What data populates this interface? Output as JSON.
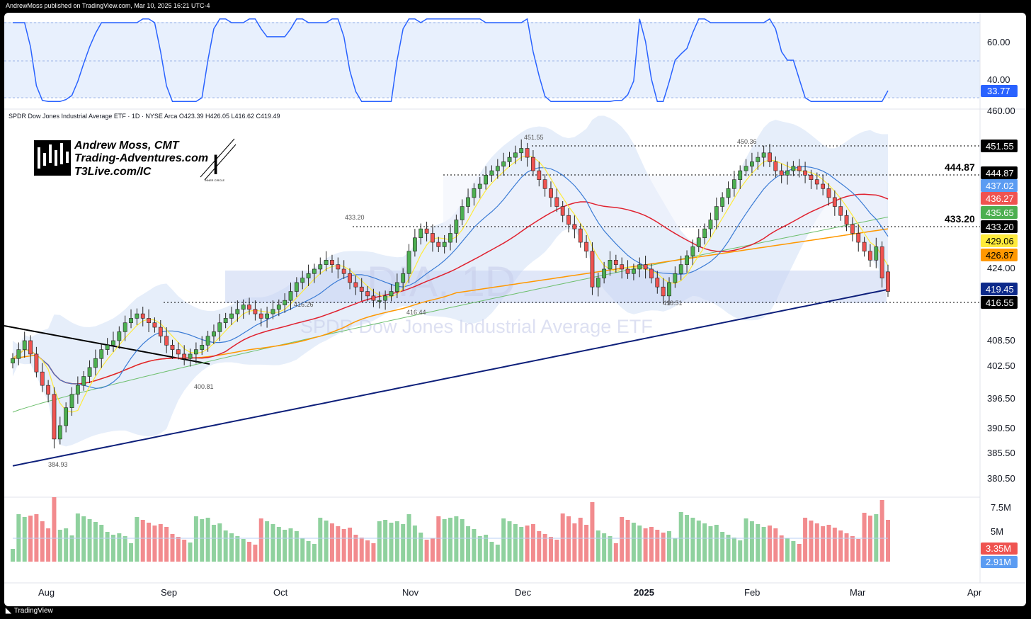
{
  "header": {
    "published_by": "AndrewMoss published on TradingView.com, Mar 10, 2025 16:21 UTC-4"
  },
  "footer": {
    "brand": "TradingView",
    "logo_glyph": "tradingview-logo-icon"
  },
  "symbol_line": "SPDR Dow Jones Industrial Average ETF · 1D · NYSE Arca  O423.39  H426.05  L416.62  C419.49",
  "watermark": {
    "ticker": "DIA, 1D",
    "name": "SPDR Dow Jones Industrial Average ETF"
  },
  "branding": {
    "line1": "Andrew Moss, CMT",
    "line2": "Trading-Adventures.com",
    "line3": "T3Live.com/IC",
    "inner_circle_caption": "INNER CIRCLE",
    "inner_circle_letter": "I"
  },
  "price_axis": {
    "ticks": [
      "460.00",
      "424.00",
      "408.50",
      "402.50",
      "396.50",
      "390.50",
      "385.50",
      "380.50"
    ],
    "tags": [
      {
        "label": "451.55",
        "bg": "#000000",
        "fg": "#ffffff",
        "value": 451.55
      },
      {
        "label": "444.87",
        "bg": "#000000",
        "fg": "#ffffff",
        "value": 444.87
      },
      {
        "label": "437.02",
        "bg": "#5b9cf2",
        "fg": "#ffffff",
        "value": 437.02
      },
      {
        "label": "436.27",
        "bg": "#ef5350",
        "fg": "#ffffff",
        "value": 436.27
      },
      {
        "label": "435.65",
        "bg": "#4caf50",
        "fg": "#ffffff",
        "value": 435.65
      },
      {
        "label": "433.20",
        "bg": "#000000",
        "fg": "#ffffff",
        "value": 433.2
      },
      {
        "label": "429.06",
        "bg": "#ffeb3b",
        "fg": "#000000",
        "value": 429.06
      },
      {
        "label": "426.87",
        "bg": "#ff9800",
        "fg": "#000000",
        "value": 426.87
      },
      {
        "label": "419.45",
        "bg": "#0d2a8a",
        "fg": "#ffffff",
        "value": 419.45
      },
      {
        "label": "416.55",
        "bg": "#000000",
        "fg": "#ffffff",
        "value": 416.55
      }
    ],
    "level_labels": [
      "444.87",
      "433.20"
    ]
  },
  "rsi_axis": {
    "ticks": [
      "60.00",
      "40.00"
    ],
    "current": "33.77"
  },
  "volume_axis": {
    "ticks": [
      "7.5M",
      "5M"
    ],
    "tags": [
      {
        "label": "3.35M",
        "bg": "#ef5350"
      },
      {
        "label": "2.91M",
        "bg": "#5b9cf2"
      }
    ]
  },
  "time_axis": {
    "labels": [
      "Aug",
      "Sep",
      "Oct",
      "Nov",
      "Dec",
      "2025",
      "Feb",
      "Mar",
      "Apr"
    ]
  },
  "price_annotations": [
    "451.55",
    "450.36",
    "433.20",
    "416.26",
    "416.44",
    "418.51",
    "400.81",
    "384.93"
  ],
  "colors": {
    "up": "#4caf50",
    "down": "#ef5350",
    "sma20": "#ffeb3b",
    "ema": "#3a7bd5",
    "sma50": "#e0212f",
    "sma100": "#6dbf6d",
    "sma150": "#ff9800",
    "sma200": "#0d1f7a",
    "band": "#e3edfb",
    "rsi": "#2962ff"
  },
  "chart_data": {
    "type": "candlestick",
    "title": "SPDR Dow Jones Industrial Average ETF · 1D · NYSE Arca",
    "ohlc_last": {
      "open": 423.39,
      "high": 426.05,
      "low": 416.62,
      "close": 419.49
    },
    "x": [
      "Aug",
      "Sep",
      "Oct",
      "Nov",
      "Dec",
      "2025",
      "Feb",
      "Mar",
      "Apr"
    ],
    "horizontal_levels": [
      451.55,
      444.87,
      433.2,
      416.55
    ],
    "moving_average_last_values": {
      "sma20_yellow": 429.06,
      "ema_blue": 437.02,
      "sma50_red": 436.27,
      "sma100_green": 435.65,
      "sma150_orange": 426.87,
      "sma200_navy": 419.45
    },
    "closes_approx": [
      404,
      406,
      408,
      405,
      401,
      398,
      396,
      386,
      389,
      393,
      396,
      398,
      400,
      402,
      404,
      406,
      407,
      408,
      410,
      412,
      413,
      414,
      413,
      412,
      411,
      409,
      407,
      406,
      405,
      404,
      405,
      406,
      407,
      409,
      410,
      412,
      413,
      414,
      415,
      416,
      415,
      414,
      413,
      414,
      415,
      416,
      417,
      419,
      421,
      422,
      423,
      424,
      425,
      426,
      425,
      424,
      423,
      421,
      420,
      419,
      418,
      417,
      417,
      418,
      419,
      421,
      423,
      428,
      431,
      433,
      432,
      430,
      429,
      430,
      432,
      435,
      438,
      440,
      442,
      443,
      445,
      446,
      447,
      448,
      449,
      450,
      451,
      449,
      446,
      444,
      442,
      440,
      438,
      436,
      434,
      433,
      430,
      428,
      420,
      422,
      424,
      426,
      425,
      424,
      423,
      424,
      425,
      424,
      422,
      420,
      418,
      421,
      423,
      425,
      427,
      429,
      431,
      433,
      435,
      438,
      440,
      442,
      444,
      446,
      447,
      448,
      449,
      450,
      448,
      446,
      445,
      446,
      447,
      446,
      445,
      444,
      443,
      442,
      440,
      438,
      436,
      434,
      432,
      430,
      428,
      426,
      429,
      422,
      419
    ],
    "rsi": {
      "levels": [
        60,
        40
      ],
      "last": 33.77
    },
    "volume": {
      "ticks": [
        "7.5M",
        "5M"
      ],
      "last": "3.35M",
      "average": "2.91M"
    }
  }
}
